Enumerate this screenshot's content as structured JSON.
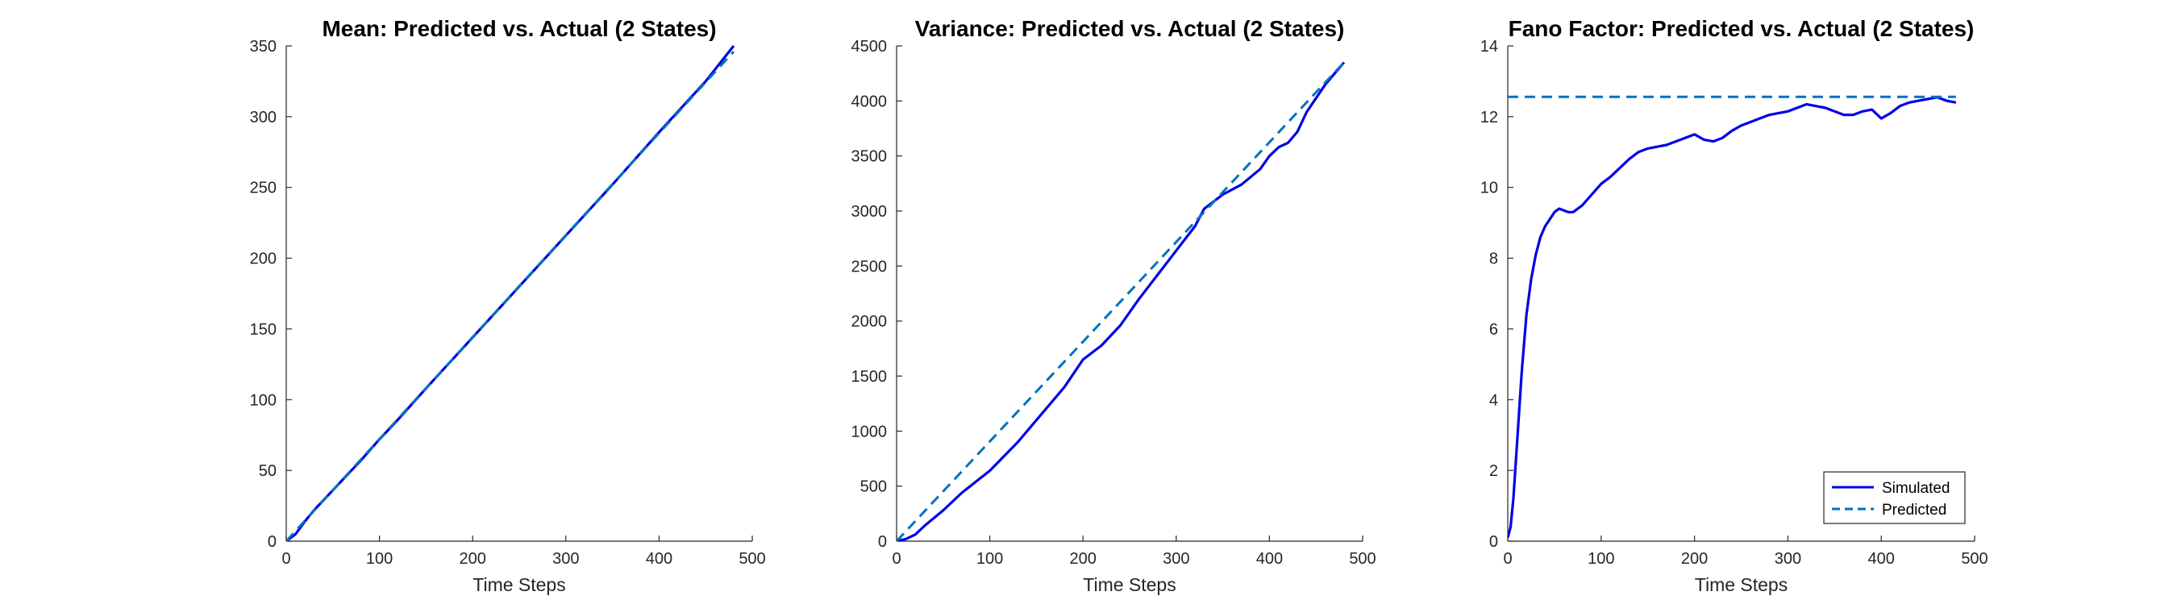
{
  "figure": {
    "background": "#ffffff"
  },
  "styles": {
    "simulated_color": "#0000e6",
    "predicted_color": "#0072bd",
    "axis_color": "#262626"
  },
  "chart_data": [
    {
      "type": "line",
      "title": "Mean: Predicted vs. Actual (2 States)",
      "xlabel": "Time Steps",
      "ylabel": "",
      "xlim": [
        0,
        500
      ],
      "ylim": [
        0,
        350
      ],
      "xticks": [
        0,
        100,
        200,
        300,
        400,
        500
      ],
      "yticks": [
        0,
        50,
        100,
        150,
        200,
        250,
        300,
        350
      ],
      "grid": false,
      "series": [
        {
          "style": "solid",
          "x": [
            0,
            10,
            20,
            30,
            40,
            60,
            80,
            100,
            120,
            150,
            200,
            250,
            300,
            350,
            400,
            450,
            480
          ],
          "y": [
            0,
            5,
            14,
            22,
            29,
            43,
            57,
            72,
            86,
            108,
            144,
            180,
            216,
            252,
            289,
            325,
            350
          ]
        },
        {
          "style": "dashed",
          "x": [
            0,
            480
          ],
          "y": [
            0,
            346
          ]
        }
      ],
      "legend": null
    },
    {
      "type": "line",
      "title": "Variance: Predicted vs. Actual (2 States)",
      "xlabel": "Time Steps",
      "ylabel": "",
      "xlim": [
        0,
        500
      ],
      "ylim": [
        0,
        4500
      ],
      "xticks": [
        0,
        100,
        200,
        300,
        400,
        500
      ],
      "yticks": [
        0,
        500,
        1000,
        1500,
        2000,
        2500,
        3000,
        3500,
        4000,
        4500
      ],
      "grid": false,
      "series": [
        {
          "style": "solid",
          "x": [
            0,
            10,
            20,
            30,
            50,
            70,
            100,
            130,
            160,
            180,
            200,
            220,
            240,
            260,
            280,
            300,
            320,
            330,
            350,
            370,
            390,
            400,
            410,
            420,
            430,
            440,
            460,
            480
          ],
          "y": [
            0,
            20,
            60,
            140,
            280,
            440,
            640,
            900,
            1200,
            1400,
            1650,
            1780,
            1960,
            2200,
            2420,
            2640,
            2860,
            3020,
            3150,
            3240,
            3380,
            3500,
            3580,
            3620,
            3720,
            3900,
            4150,
            4350
          ]
        },
        {
          "style": "dashed",
          "x": [
            0,
            480
          ],
          "y": [
            0,
            4350
          ]
        }
      ],
      "legend": null
    },
    {
      "type": "line",
      "title": "Fano Factor: Predicted vs. Actual (2 States)",
      "xlabel": "Time Steps",
      "ylabel": "",
      "xlim": [
        0,
        500
      ],
      "ylim": [
        0,
        14
      ],
      "xticks": [
        0,
        100,
        200,
        300,
        400,
        500
      ],
      "yticks": [
        0,
        2,
        4,
        6,
        8,
        10,
        12,
        14
      ],
      "grid": false,
      "series": [
        {
          "name": "Simulated",
          "style": "solid",
          "x": [
            0,
            3,
            6,
            10,
            15,
            20,
            25,
            30,
            35,
            40,
            45,
            50,
            55,
            60,
            65,
            70,
            75,
            80,
            90,
            100,
            110,
            120,
            130,
            140,
            150,
            160,
            170,
            180,
            190,
            200,
            210,
            220,
            230,
            240,
            250,
            260,
            270,
            280,
            290,
            300,
            310,
            320,
            330,
            340,
            350,
            360,
            370,
            380,
            390,
            400,
            410,
            420,
            430,
            440,
            450,
            460,
            470,
            480
          ],
          "y": [
            0.1,
            0.4,
            1.2,
            2.8,
            4.8,
            6.4,
            7.4,
            8.1,
            8.6,
            8.9,
            9.1,
            9.3,
            9.4,
            9.35,
            9.3,
            9.3,
            9.4,
            9.5,
            9.8,
            10.1,
            10.3,
            10.55,
            10.8,
            11.0,
            11.1,
            11.15,
            11.2,
            11.3,
            11.4,
            11.5,
            11.35,
            11.3,
            11.4,
            11.6,
            11.75,
            11.85,
            11.95,
            12.05,
            12.1,
            12.15,
            12.25,
            12.35,
            12.3,
            12.25,
            12.15,
            12.05,
            12.05,
            12.15,
            12.2,
            11.95,
            12.1,
            12.3,
            12.4,
            12.45,
            12.5,
            12.55,
            12.45,
            12.4
          ]
        },
        {
          "name": "Predicted",
          "style": "dashed",
          "x": [
            0,
            480
          ],
          "y": [
            12.56,
            12.56
          ]
        }
      ],
      "legend": "bottom-right"
    }
  ]
}
